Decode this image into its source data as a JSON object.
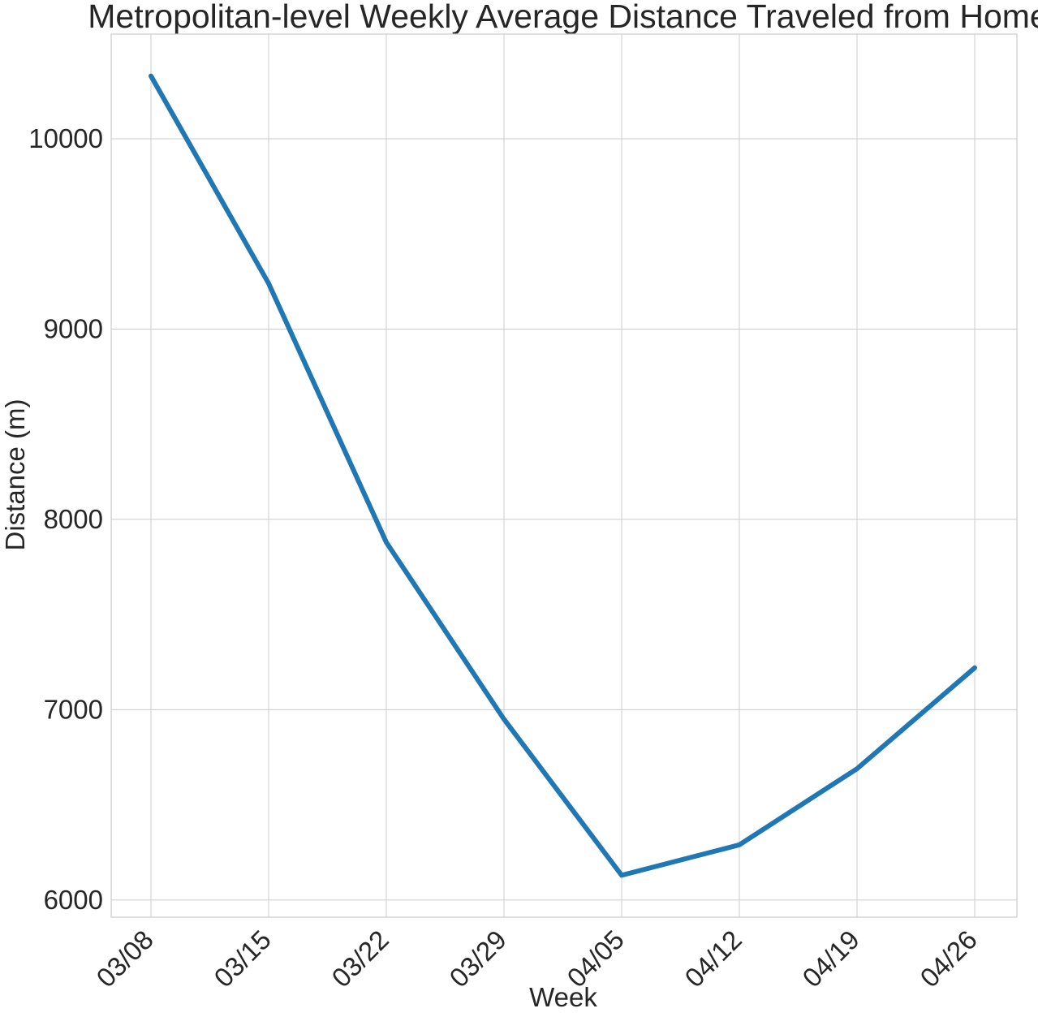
{
  "chart_data": {
    "type": "line",
    "title": "Metropolitan-level Weekly Average Distance Traveled from Home",
    "xlabel": "Week",
    "ylabel": "Distance (m)",
    "x": [
      "03/08",
      "03/15",
      "03/22",
      "03/29",
      "04/05",
      "04/12",
      "04/19",
      "04/26"
    ],
    "series": [
      {
        "values": [
          10330,
          9240,
          7880,
          6950,
          6130,
          6290,
          6690,
          7220
        ]
      }
    ],
    "yticks": [
      6000,
      7000,
      8000,
      9000,
      10000
    ],
    "ytick_labels": [
      "6000",
      "7000",
      "8000",
      "9000",
      "10000"
    ],
    "ylim": [
      5910,
      10550
    ],
    "grid": true,
    "legend": "none",
    "colors": {
      "line": "#1f77b4",
      "grid": "#cccccc",
      "text": "#262626",
      "background": "#ffffff"
    }
  }
}
